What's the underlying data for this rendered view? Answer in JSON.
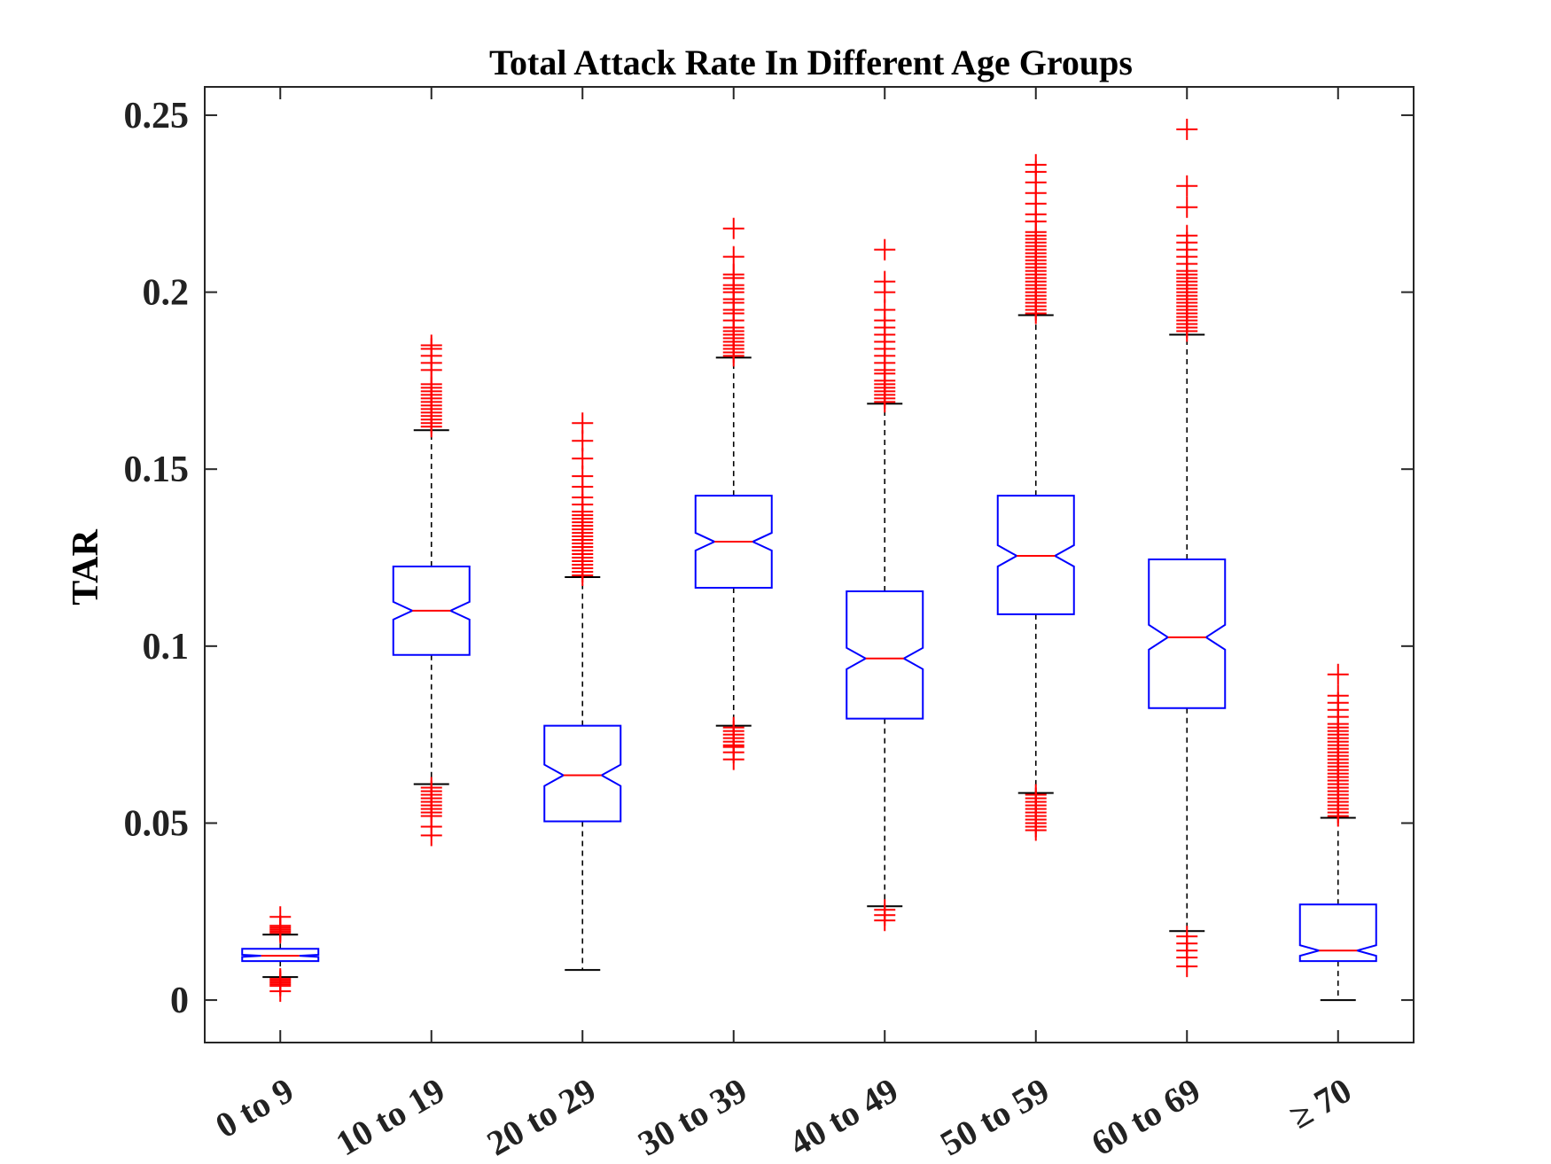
{
  "chart_data": {
    "type": "box",
    "title": "Total Attack Rate In Different Age Groups",
    "xlabel": "",
    "ylabel": "TAR",
    "ylim": [
      -0.012,
      0.258
    ],
    "yticks": [
      0,
      0.05,
      0.1,
      0.15,
      0.2,
      0.25
    ],
    "ytick_labels": [
      "0",
      "0.05",
      "0.1",
      "0.15",
      "0.2",
      "0.25"
    ],
    "notched": true,
    "grid": false,
    "colors": {
      "box": "#0000ff",
      "median": "#ff0000",
      "whisker": "#000000",
      "outlier": "#ff0000",
      "axis": "#262626"
    },
    "categories": [
      "0 to 9",
      "10 to 19",
      "20 to 29",
      "30 to 39",
      "40 to 49",
      "50 to 59",
      "60 to 69",
      "≥ 70"
    ],
    "boxes": [
      {
        "label": "0 to 9",
        "whisker_low": 0.0065,
        "q1": 0.011,
        "median": 0.0125,
        "q3": 0.0145,
        "whisker_high": 0.0185,
        "notch": 0.0003,
        "outliers": [
          0.0025,
          0.004,
          0.0045,
          0.005,
          0.0055,
          0.006,
          0.019,
          0.0195,
          0.02,
          0.0205,
          0.021,
          0.0235
        ]
      },
      {
        "label": "10 to 19",
        "whisker_low": 0.061,
        "q1": 0.0975,
        "median": 0.11,
        "q3": 0.1225,
        "whisker_high": 0.161,
        "notch": 0.0025,
        "outliers": [
          0.0465,
          0.049,
          0.052,
          0.053,
          0.054,
          0.055,
          0.056,
          0.057,
          0.058,
          0.059,
          0.06,
          0.162,
          0.163,
          0.164,
          0.165,
          0.166,
          0.167,
          0.168,
          0.169,
          0.17,
          0.171,
          0.172,
          0.173,
          0.174,
          0.178,
          0.18,
          0.182,
          0.184,
          0.185
        ]
      },
      {
        "label": "20 to 29",
        "whisker_low": 0.0085,
        "q1": 0.0505,
        "median": 0.0635,
        "q3": 0.0775,
        "whisker_high": 0.1195,
        "notch": 0.003,
        "outliers": [
          0.12,
          0.121,
          0.122,
          0.123,
          0.124,
          0.125,
          0.126,
          0.127,
          0.128,
          0.129,
          0.13,
          0.131,
          0.132,
          0.133,
          0.134,
          0.135,
          0.136,
          0.137,
          0.138,
          0.14,
          0.142,
          0.145,
          0.148,
          0.153,
          0.158,
          0.163
        ]
      },
      {
        "label": "30 to 39",
        "whisker_low": 0.0775,
        "q1": 0.1165,
        "median": 0.1295,
        "q3": 0.1425,
        "whisker_high": 0.1815,
        "notch": 0.0025,
        "outliers": [
          0.068,
          0.07,
          0.0715,
          0.072,
          0.073,
          0.074,
          0.075,
          0.076,
          0.077,
          0.182,
          0.183,
          0.184,
          0.185,
          0.186,
          0.187,
          0.188,
          0.189,
          0.19,
          0.192,
          0.194,
          0.195,
          0.197,
          0.198,
          0.2,
          0.201,
          0.202,
          0.204,
          0.205,
          0.21,
          0.218
        ]
      },
      {
        "label": "40 to 49",
        "whisker_low": 0.0265,
        "q1": 0.0795,
        "median": 0.0965,
        "q3": 0.1155,
        "whisker_high": 0.1685,
        "notch": 0.003,
        "outliers": [
          0.0225,
          0.024,
          0.0255,
          0.169,
          0.17,
          0.171,
          0.172,
          0.173,
          0.174,
          0.175,
          0.177,
          0.178,
          0.18,
          0.182,
          0.184,
          0.186,
          0.188,
          0.19,
          0.192,
          0.195,
          0.2,
          0.203,
          0.212
        ]
      },
      {
        "label": "50 to 59",
        "whisker_low": 0.0585,
        "q1": 0.109,
        "median": 0.1255,
        "q3": 0.1425,
        "whisker_high": 0.1935,
        "notch": 0.003,
        "outliers": [
          0.048,
          0.049,
          0.05,
          0.051,
          0.052,
          0.053,
          0.054,
          0.055,
          0.056,
          0.057,
          0.058,
          0.194,
          0.195,
          0.196,
          0.197,
          0.198,
          0.199,
          0.2,
          0.201,
          0.202,
          0.203,
          0.204,
          0.205,
          0.206,
          0.207,
          0.208,
          0.209,
          0.21,
          0.211,
          0.212,
          0.213,
          0.214,
          0.215,
          0.216,
          0.217,
          0.22,
          0.222,
          0.225,
          0.228,
          0.231,
          0.234,
          0.236
        ]
      },
      {
        "label": "60 to 69",
        "whisker_low": 0.0195,
        "q1": 0.0825,
        "median": 0.1025,
        "q3": 0.1245,
        "whisker_high": 0.188,
        "notch": 0.0035,
        "outliers": [
          0.0095,
          0.012,
          0.014,
          0.016,
          0.018,
          0.189,
          0.19,
          0.191,
          0.192,
          0.193,
          0.194,
          0.195,
          0.196,
          0.197,
          0.198,
          0.199,
          0.2,
          0.201,
          0.202,
          0.203,
          0.204,
          0.205,
          0.206,
          0.208,
          0.21,
          0.212,
          0.214,
          0.216,
          0.224,
          0.23,
          0.246
        ]
      },
      {
        "label": "≥ 70",
        "whisker_low": 0.0,
        "q1": 0.011,
        "median": 0.014,
        "q3": 0.027,
        "whisker_high": 0.0515,
        "notch": 0.0015,
        "outliers": [
          0.052,
          0.053,
          0.054,
          0.055,
          0.056,
          0.057,
          0.058,
          0.059,
          0.06,
          0.061,
          0.062,
          0.063,
          0.064,
          0.065,
          0.066,
          0.067,
          0.068,
          0.069,
          0.07,
          0.071,
          0.072,
          0.073,
          0.074,
          0.075,
          0.076,
          0.077,
          0.078,
          0.08,
          0.082,
          0.084,
          0.086,
          0.092
        ]
      }
    ]
  }
}
